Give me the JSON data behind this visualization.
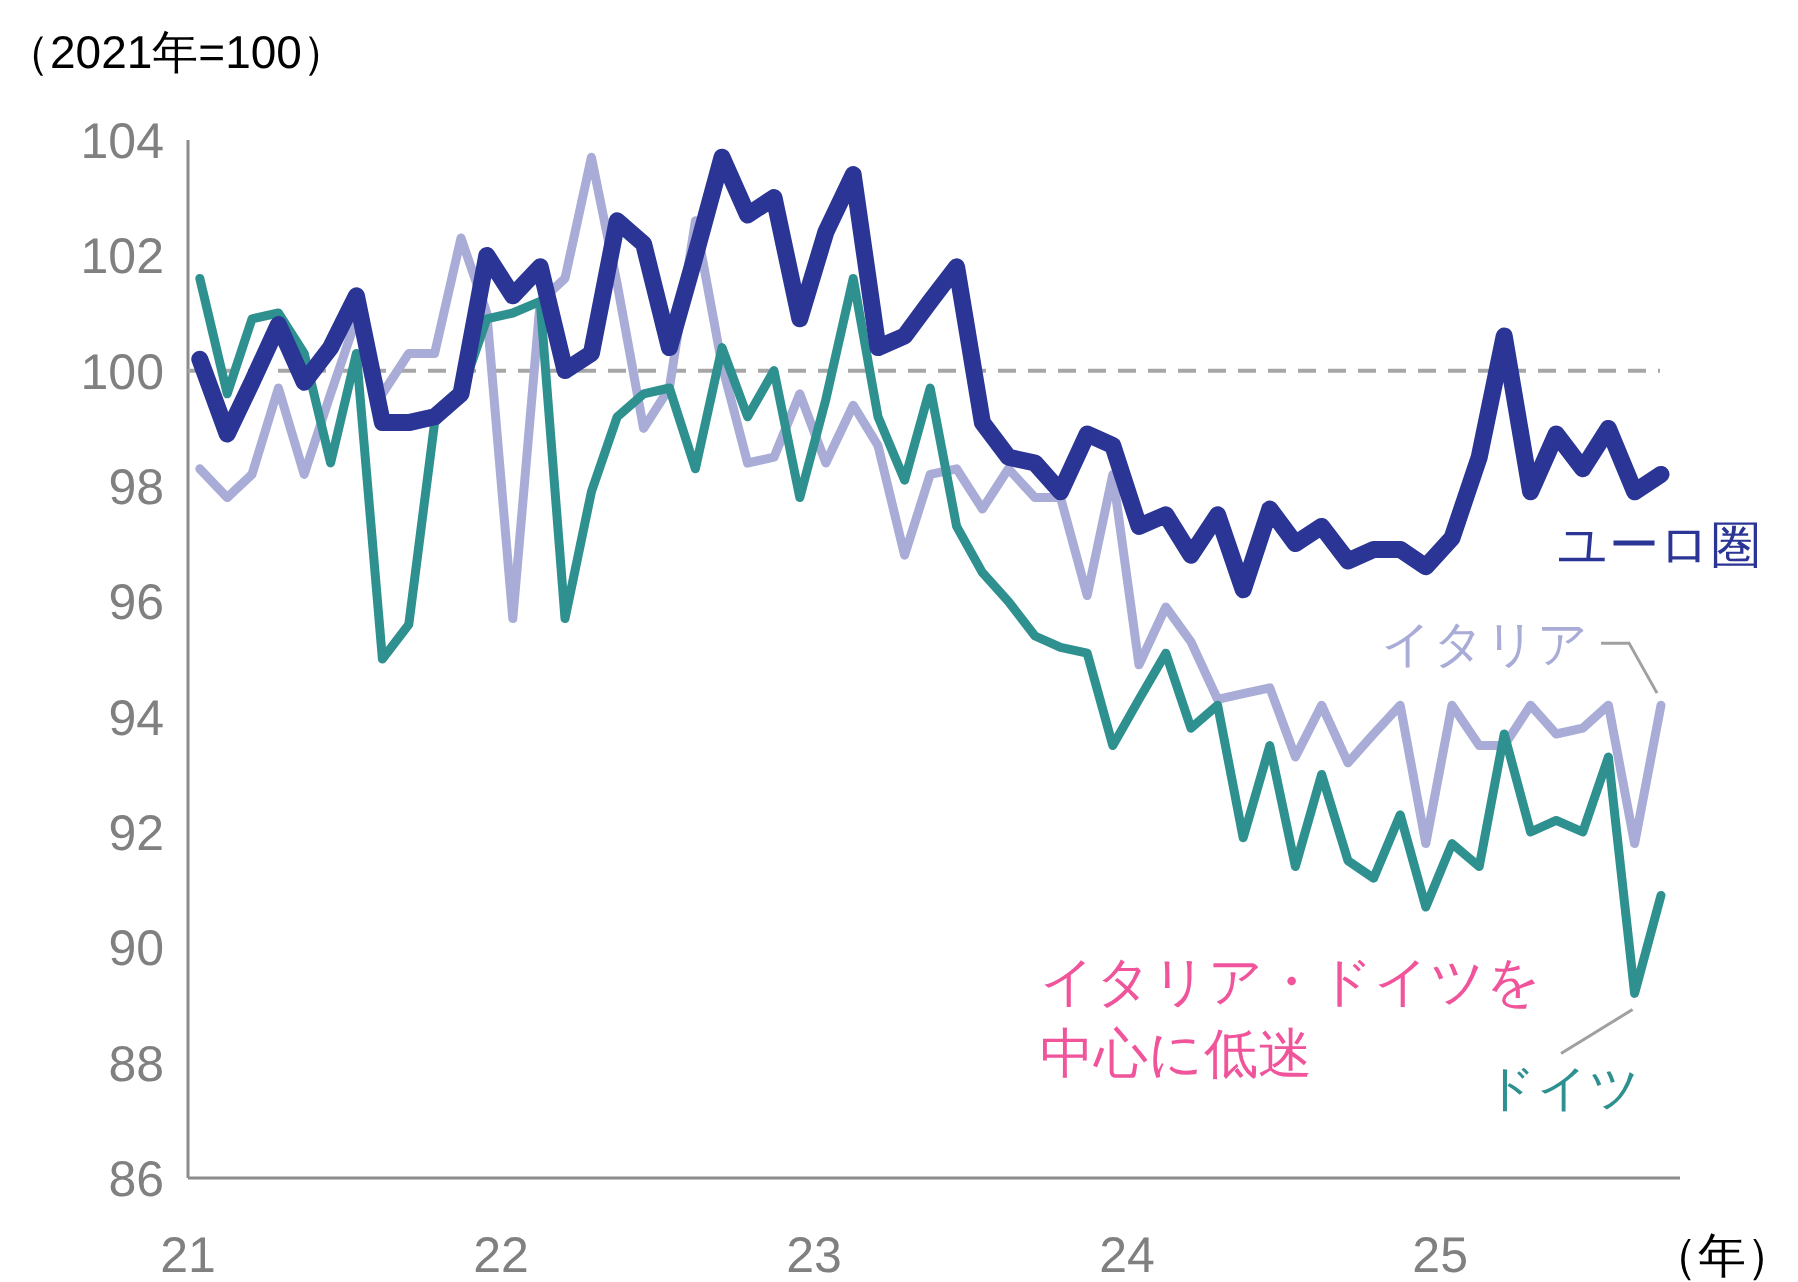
{
  "chart_data": {
    "type": "line",
    "ylabel": "（2021年=100）",
    "xlabel": "（年）",
    "x": [
      "2021-01-15",
      "2021-02-15",
      "2021-03-15",
      "2021-04-15",
      "2021-05-15",
      "2021-06-15",
      "2021-07-15",
      "2021-08-15",
      "2021-09-15",
      "2021-10-15",
      "2021-11-15",
      "2021-12-15",
      "2022-01-15",
      "2022-02-15",
      "2022-03-15",
      "2022-04-15",
      "2022-05-15",
      "2022-06-15",
      "2022-07-15",
      "2022-08-15",
      "2022-09-15",
      "2022-10-15",
      "2022-11-15",
      "2022-12-15",
      "2023-01-15",
      "2023-02-15",
      "2023-03-15",
      "2023-04-15",
      "2023-05-15",
      "2023-06-15",
      "2023-07-15",
      "2023-08-15",
      "2023-09-15",
      "2023-10-15",
      "2023-11-15",
      "2023-12-15",
      "2024-01-15",
      "2024-02-15",
      "2024-03-15",
      "2024-04-15",
      "2024-05-15",
      "2024-06-15",
      "2024-07-15",
      "2024-08-15",
      "2024-09-15",
      "2024-10-15",
      "2024-11-15",
      "2024-12-15",
      "2025-01-15",
      "2025-02-15",
      "2025-03-15",
      "2025-04-15",
      "2025-05-15",
      "2025-06-15",
      "2025-07-15",
      "2025-08-15",
      "2025-09-15"
    ],
    "series": [
      {
        "name": "イタリア",
        "color": "#a9acd6",
        "values": [
          98.3,
          97.8,
          98.2,
          99.7,
          98.2,
          99.6,
          100.9,
          99.6,
          100.3,
          100.3,
          102.3,
          101.0,
          95.7,
          101.2,
          101.6,
          103.7,
          101.5,
          99.0,
          99.7,
          102.6,
          100.1,
          98.4,
          98.5,
          99.6,
          98.4,
          99.4,
          98.7,
          96.8,
          98.2,
          98.3,
          97.6,
          98.3,
          97.8,
          97.8,
          96.1,
          98.2,
          94.9,
          95.9,
          95.3,
          94.3,
          94.4,
          94.5,
          93.3,
          94.2,
          93.2,
          93.7,
          94.2,
          91.8,
          94.2,
          93.5,
          93.5,
          94.2,
          93.7,
          93.8,
          94.2,
          91.8,
          94.2
        ]
      },
      {
        "name": "ドイツ",
        "color": "#2f9090",
        "values": [
          101.6,
          99.6,
          100.9,
          101.0,
          100.3,
          98.4,
          100.3,
          95.0,
          95.6,
          99.1,
          99.6,
          100.9,
          101.0,
          101.2,
          95.7,
          97.9,
          99.2,
          99.6,
          99.7,
          98.3,
          100.4,
          99.2,
          100.0,
          97.8,
          99.5,
          101.6,
          99.2,
          98.1,
          99.7,
          97.3,
          96.5,
          96.0,
          95.4,
          95.2,
          95.1,
          93.5,
          94.3,
          95.1,
          93.8,
          94.2,
          91.9,
          93.5,
          91.4,
          93.0,
          91.5,
          91.2,
          92.3,
          90.7,
          91.8,
          91.4,
          93.7,
          92.0,
          92.2,
          92.0,
          93.3,
          89.2,
          90.9
        ]
      },
      {
        "name": "ユーロ圏",
        "color": "#2b3595",
        "values": [
          100.2,
          98.9,
          99.8,
          100.8,
          99.8,
          100.4,
          101.3,
          99.1,
          99.1,
          99.2,
          99.6,
          102.0,
          101.3,
          101.8,
          100.0,
          100.3,
          102.6,
          102.2,
          100.4,
          102.0,
          103.7,
          102.7,
          103.0,
          100.9,
          102.4,
          103.4,
          100.4,
          100.6,
          101.2,
          101.8,
          99.1,
          98.5,
          98.4,
          97.9,
          98.9,
          98.7,
          97.3,
          97.5,
          96.8,
          97.5,
          96.2,
          97.6,
          97.0,
          97.3,
          96.7,
          96.9,
          96.9,
          96.6,
          97.1,
          98.5,
          100.6,
          97.9,
          98.9,
          98.3,
          99.0,
          97.9,
          98.2
        ]
      }
    ],
    "xlim": [
      "2021-01-01",
      "2025-10-07"
    ],
    "xticks": [
      {
        "value": "2021-01-01",
        "label": "21"
      },
      {
        "value": "2022-01-01",
        "label": "22"
      },
      {
        "value": "2023-01-01",
        "label": "23"
      },
      {
        "value": "2024-01-01",
        "label": "24"
      },
      {
        "value": "2025-01-01",
        "label": "25"
      }
    ],
    "ylim": [
      86,
      104
    ],
    "yticks": [
      86,
      88,
      90,
      92,
      94,
      96,
      98,
      100,
      102,
      104
    ],
    "ref_lines": [
      {
        "axis": "y",
        "value": 100,
        "color": "#a6a6a6",
        "line_style": "dashed"
      }
    ],
    "annotations": [
      "イタリア・ドイツを中心に低迷"
    ],
    "grid": false,
    "legend": false,
    "marker": "none",
    "line_style": "solid"
  }
}
